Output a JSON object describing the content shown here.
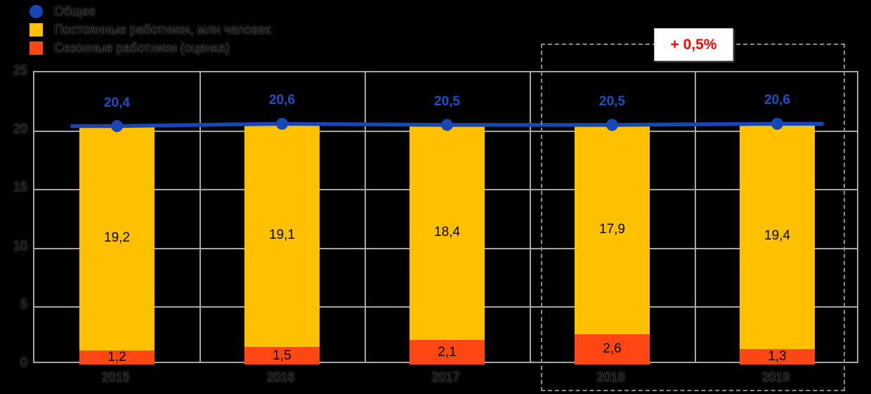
{
  "legend": {
    "items": [
      {
        "label": "Общее",
        "shape": "circle",
        "color": "#1747B4"
      },
      {
        "label": "Постоянные работники, млн человек",
        "shape": "square",
        "color": "#FFC000"
      },
      {
        "label": "Сезонные работники (оценка)",
        "shape": "square",
        "color": "#FF4713"
      }
    ]
  },
  "annotation": {
    "text": "+ 0,5%",
    "color": "#FF0000"
  },
  "colors": {
    "bar_yellow": "#FFC000",
    "bar_orange": "#FF4713",
    "line_blue": "#1747B4",
    "point_label_blue": "#1E4FC4",
    "annotation_red": "#FF0000",
    "grid": "#A6A6A6",
    "dashed_box": "#8C8C8C",
    "background": "#000000",
    "axis_text": "#000000"
  },
  "chart_data": {
    "type": "bar",
    "title": "",
    "categories": [
      "2015",
      "2016",
      "2017",
      "2018",
      "2019"
    ],
    "series": [
      {
        "name": "Сезонные работники (оценка)",
        "type": "bar",
        "stack": "total",
        "color": "#FF4713",
        "values": [
          1.2,
          1.5,
          2.1,
          2.6,
          1.3
        ],
        "labels": [
          "1,2",
          "1,5",
          "2,1",
          "2,6",
          "1,3"
        ]
      },
      {
        "name": "Постоянные работники, млн человек",
        "type": "bar",
        "stack": "total",
        "color": "#FFC000",
        "values": [
          19.2,
          19.1,
          18.4,
          17.9,
          19.4
        ],
        "labels": [
          "19,2",
          "19,1",
          "18,4",
          "17,9",
          "19,4"
        ]
      },
      {
        "name": "Общее",
        "type": "line",
        "color": "#1747B4",
        "values": [
          20.4,
          20.6,
          20.5,
          20.5,
          20.6
        ],
        "labels": [
          "20,4",
          "20,6",
          "20,5",
          "20,5",
          "20,6"
        ]
      }
    ],
    "xlabel": "",
    "ylabel": "",
    "ylim": [
      0,
      25
    ],
    "y_ticks": [
      "0",
      "5",
      "10",
      "15",
      "20",
      "25"
    ],
    "grid": true,
    "legend_position": "top-left",
    "highlight_region": {
      "categories": [
        "2018",
        "2019"
      ],
      "label": "+ 0,5%",
      "style": "dashed-box"
    }
  }
}
